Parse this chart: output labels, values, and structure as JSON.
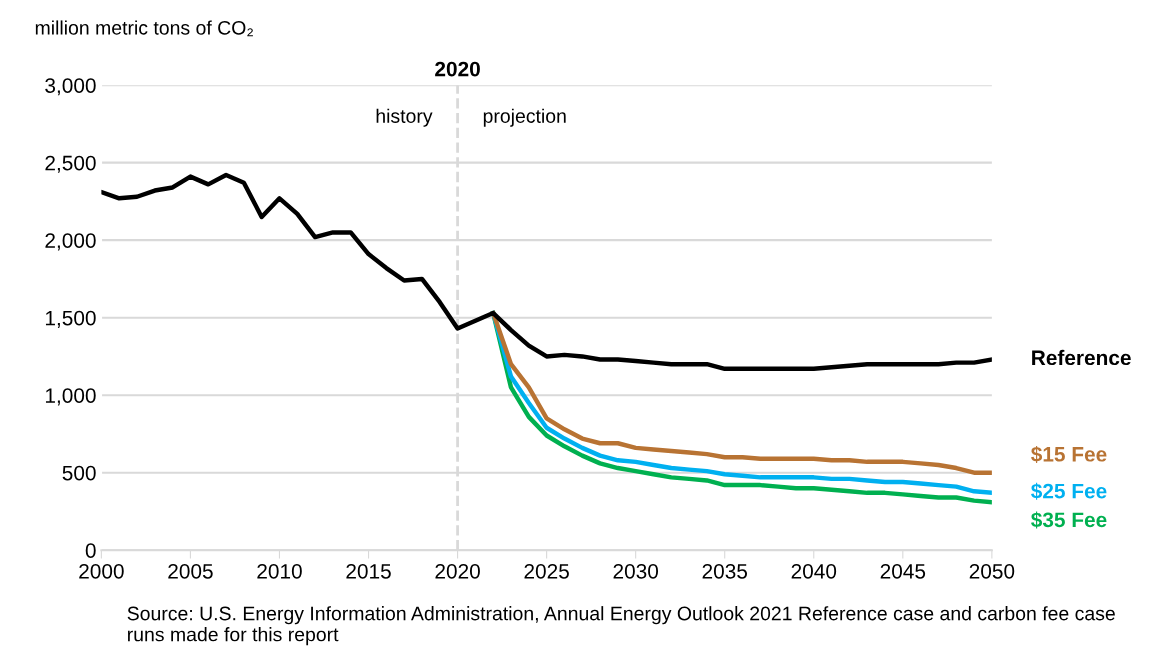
{
  "chart_data": {
    "type": "line",
    "ylabel": "million metric tons of CO₂",
    "xlim": [
      2000,
      2050
    ],
    "xticks": [
      2000,
      2005,
      2010,
      2015,
      2020,
      2025,
      2030,
      2035,
      2040,
      2045,
      2050
    ],
    "ylim": [
      0,
      3000
    ],
    "yticks": [
      {
        "value": 0,
        "label": "0"
      },
      {
        "value": 500,
        "label": "500"
      },
      {
        "value": 1000,
        "label": "1,000"
      },
      {
        "value": 1500,
        "label": "1,500"
      },
      {
        "value": 2000,
        "label": "2,000"
      },
      {
        "value": 2500,
        "label": "2,500"
      },
      {
        "value": 3000,
        "label": "3,000"
      }
    ],
    "grid": "y",
    "legend": false,
    "marker": "none",
    "line_style": "solid",
    "series": [
      {
        "name": "Reference",
        "color": "#000000",
        "x": [
          2000,
          2001,
          2002,
          2003,
          2004,
          2005,
          2006,
          2007,
          2008,
          2009,
          2010,
          2011,
          2012,
          2013,
          2014,
          2015,
          2016,
          2017,
          2018,
          2019,
          2020,
          2021,
          2022,
          2023,
          2024,
          2025,
          2026,
          2027,
          2028,
          2029,
          2030,
          2031,
          2032,
          2033,
          2034,
          2035,
          2036,
          2037,
          2038,
          2039,
          2040,
          2041,
          2042,
          2043,
          2044,
          2045,
          2046,
          2047,
          2048,
          2049,
          2050
        ],
        "values": [
          2310,
          2270,
          2280,
          2320,
          2340,
          2410,
          2360,
          2420,
          2370,
          2150,
          2270,
          2170,
          2020,
          2050,
          2050,
          1910,
          1820,
          1740,
          1750,
          1600,
          1430,
          1480,
          1530,
          1420,
          1320,
          1250,
          1260,
          1250,
          1230,
          1230,
          1220,
          1210,
          1200,
          1200,
          1200,
          1170,
          1170,
          1170,
          1170,
          1170,
          1170,
          1180,
          1190,
          1200,
          1200,
          1200,
          1200,
          1200,
          1210,
          1210,
          1230
        ]
      },
      {
        "name": "$15 Fee",
        "color": "#b87333",
        "x": [
          2022,
          2023,
          2024,
          2025,
          2026,
          2027,
          2028,
          2029,
          2030,
          2031,
          2032,
          2033,
          2034,
          2035,
          2036,
          2037,
          2038,
          2039,
          2040,
          2041,
          2042,
          2043,
          2044,
          2045,
          2046,
          2047,
          2048,
          2049,
          2050
        ],
        "values": [
          1530,
          1200,
          1050,
          850,
          780,
          720,
          690,
          690,
          660,
          650,
          640,
          630,
          620,
          600,
          600,
          590,
          590,
          590,
          590,
          580,
          580,
          570,
          570,
          570,
          560,
          550,
          530,
          500,
          500
        ]
      },
      {
        "name": "$25 Fee",
        "color": "#00b0f0",
        "x": [
          2022,
          2023,
          2024,
          2025,
          2026,
          2027,
          2028,
          2029,
          2030,
          2031,
          2032,
          2033,
          2034,
          2035,
          2036,
          2037,
          2038,
          2039,
          2040,
          2041,
          2042,
          2043,
          2044,
          2045,
          2046,
          2047,
          2048,
          2049,
          2050
        ],
        "values": [
          1530,
          1120,
          950,
          790,
          720,
          660,
          610,
          580,
          570,
          550,
          530,
          520,
          510,
          490,
          480,
          470,
          470,
          470,
          470,
          460,
          460,
          450,
          440,
          440,
          430,
          420,
          410,
          380,
          370
        ]
      },
      {
        "name": "$35 Fee",
        "color": "#00b050",
        "x": [
          2022,
          2023,
          2024,
          2025,
          2026,
          2027,
          2028,
          2029,
          2030,
          2031,
          2032,
          2033,
          2034,
          2035,
          2036,
          2037,
          2038,
          2039,
          2040,
          2041,
          2042,
          2043,
          2044,
          2045,
          2046,
          2047,
          2048,
          2049,
          2050
        ],
        "values": [
          1530,
          1050,
          860,
          740,
          670,
          610,
          560,
          530,
          510,
          490,
          470,
          460,
          450,
          420,
          420,
          420,
          410,
          400,
          400,
          390,
          380,
          370,
          370,
          360,
          350,
          340,
          340,
          320,
          310
        ]
      }
    ],
    "ref_lines": [
      {
        "axis": "x",
        "value": 2020,
        "label": "2020",
        "color": "#d9d9d9",
        "line_style": "dashed"
      }
    ],
    "annotations": [
      "history",
      "projection",
      "Source: U.S. Energy Information Administration, Annual Energy Outlook 2021 Reference case and carbon fee case runs made for this report"
    ]
  }
}
